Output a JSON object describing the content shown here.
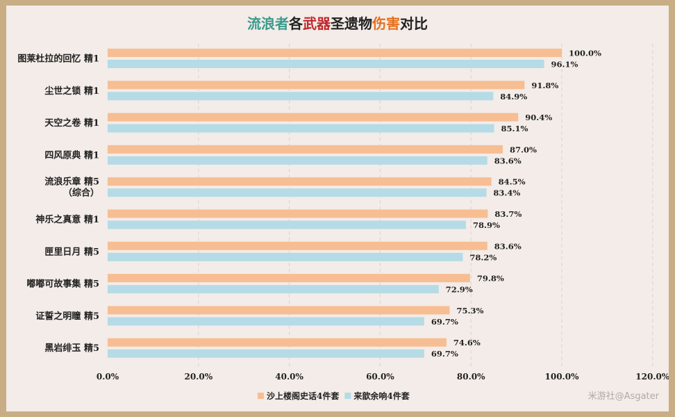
{
  "chart_data": {
    "type": "bar",
    "orientation": "horizontal",
    "title": "流浪者各武器圣遗物伤害对比",
    "title_parts": [
      {
        "text": "流浪者",
        "color": "#3a9a8c"
      },
      {
        "text": "各",
        "color": "#222222"
      },
      {
        "text": "武器",
        "color": "#c0262b"
      },
      {
        "text": "圣遗物",
        "color": "#222222"
      },
      {
        "text": "伤害",
        "color": "#e56f1d"
      },
      {
        "text": "对比",
        "color": "#222222"
      }
    ],
    "categories": [
      [
        "图莱杜拉的回忆 精1"
      ],
      [
        "尘世之锁 精1"
      ],
      [
        "天空之卷 精1"
      ],
      [
        "四风原典 精1"
      ],
      [
        "流浪乐章 精5",
        "（综合）"
      ],
      [
        "神乐之真意 精1"
      ],
      [
        "匣里日月 精5"
      ],
      [
        "嘟嘟可故事集 精5"
      ],
      [
        "证誓之明瞳 精5"
      ],
      [
        "黑岩绯玉 精5"
      ]
    ],
    "series": [
      {
        "name": "沙上楼阁史话4件套",
        "color": "#f7be93",
        "values": [
          100.0,
          91.8,
          90.4,
          87.0,
          84.5,
          83.7,
          83.6,
          79.8,
          75.3,
          74.6
        ],
        "labels": [
          "100.0%",
          "91.8%",
          "90.4%",
          "87.0%",
          "84.5%",
          "83.7%",
          "83.6%",
          "79.8%",
          "75.3%",
          "74.6%"
        ]
      },
      {
        "name": "来歆余响4件套",
        "color": "#b5dbe6",
        "values": [
          96.1,
          84.9,
          85.1,
          83.6,
          83.4,
          78.9,
          78.2,
          72.9,
          69.7,
          69.7
        ],
        "labels": [
          "96.1%",
          "84.9%",
          "85.1%",
          "83.6%",
          "83.4%",
          "78.9%",
          "78.2%",
          "72.9%",
          "69.7%",
          "69.7%"
        ]
      }
    ],
    "xlim": [
      0,
      120
    ],
    "x_ticks": [
      0,
      20,
      40,
      60,
      80,
      100,
      120
    ],
    "x_tick_labels": [
      "0.0%",
      "20.0%",
      "40.0%",
      "60.0%",
      "80.0%",
      "100.0%",
      "120.0%"
    ],
    "grid": "vertical dashed",
    "legend_position": "bottom-center"
  },
  "watermark": "米游社@Asgater"
}
